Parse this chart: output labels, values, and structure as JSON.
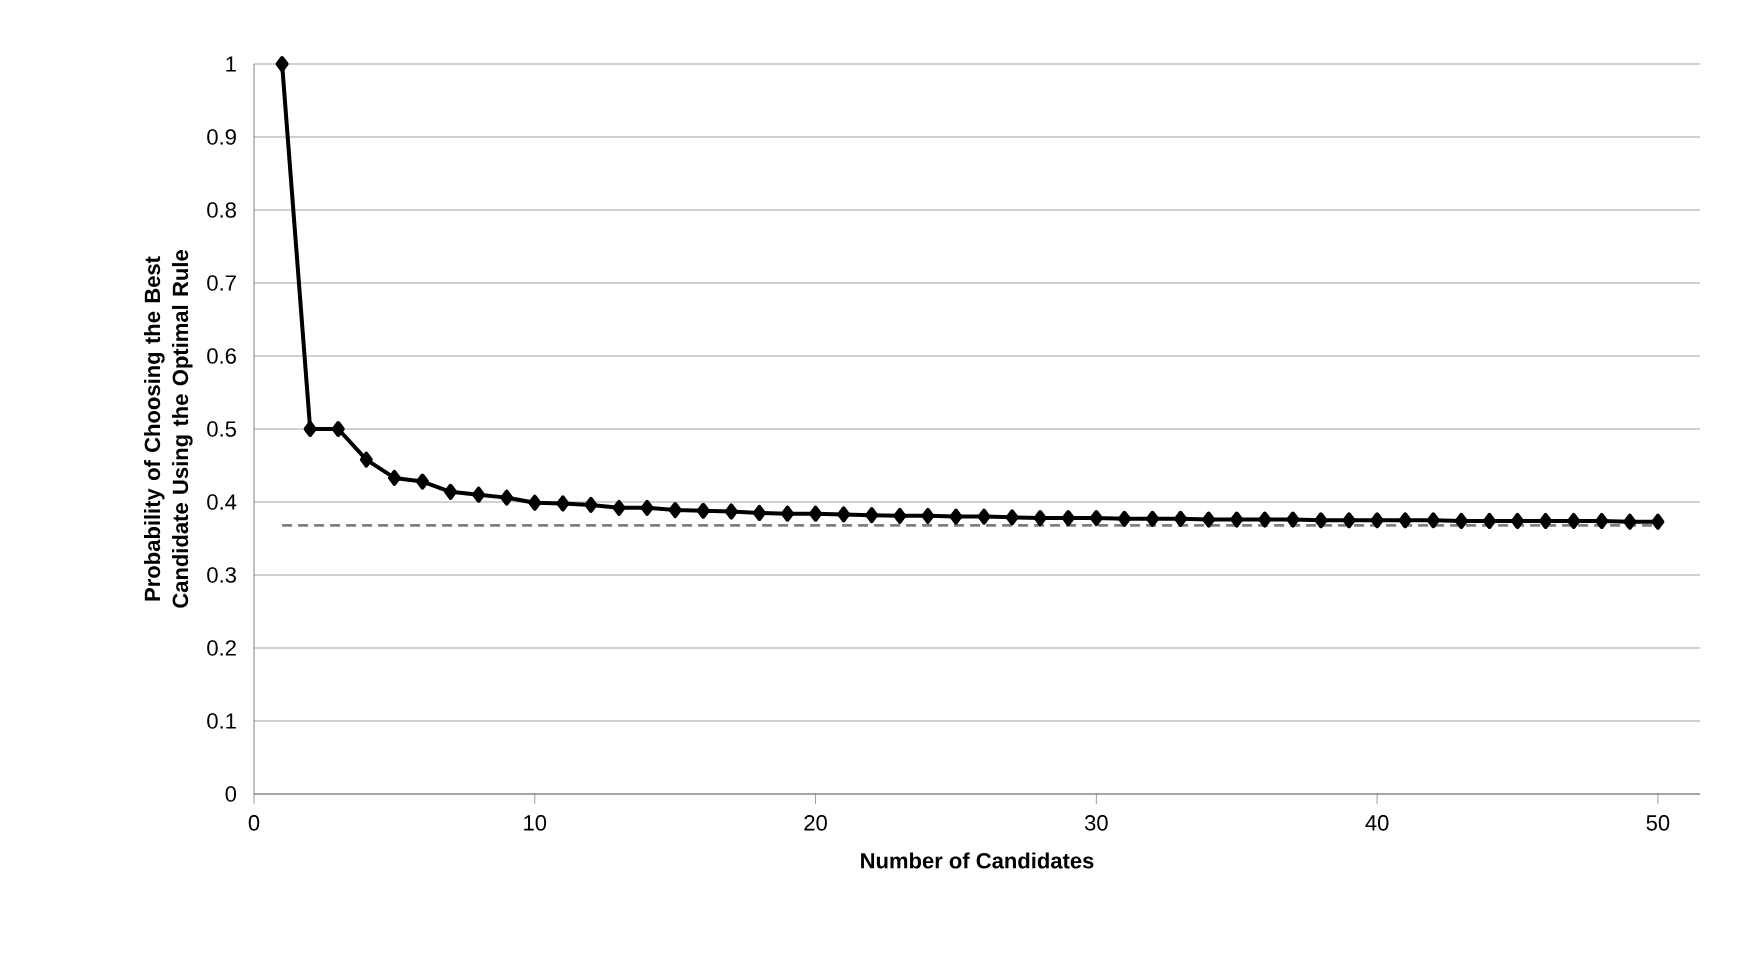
{
  "chart_data": {
    "type": "line",
    "xlabel": "Number of Candidates",
    "ylabel": "Probability of Choosing the Best Candidate Using the Optimal Rule",
    "x": [
      1,
      2,
      3,
      4,
      5,
      6,
      7,
      8,
      9,
      10,
      11,
      12,
      13,
      14,
      15,
      16,
      17,
      18,
      19,
      20,
      21,
      22,
      23,
      24,
      25,
      26,
      27,
      28,
      29,
      30,
      31,
      32,
      33,
      34,
      35,
      36,
      37,
      38,
      39,
      40,
      41,
      42,
      43,
      44,
      45,
      46,
      47,
      48,
      49,
      50
    ],
    "series": [
      {
        "color": "#000000",
        "values": [
          1,
          0.5,
          0.5,
          0.458,
          0.433,
          0.428,
          0.414,
          0.41,
          0.406,
          0.399,
          0.398,
          0.396,
          0.392,
          0.392,
          0.389,
          0.388,
          0.387,
          0.385,
          0.384,
          0.384,
          0.383,
          0.382,
          0.381,
          0.381,
          0.38,
          0.38,
          0.379,
          0.378,
          0.378,
          0.378,
          0.377,
          0.377,
          0.377,
          0.376,
          0.376,
          0.376,
          0.376,
          0.375,
          0.375,
          0.375,
          0.375,
          0.375,
          0.374,
          0.374,
          0.374,
          0.374,
          0.374,
          0.374,
          0.373,
          0.373
        ]
      }
    ],
    "xlim": [
      0,
      51.5
    ],
    "xticks": [
      0,
      10,
      20,
      30,
      40,
      50
    ],
    "ylim": [
      0,
      1
    ],
    "yticks": [
      0,
      0.1,
      0.2,
      0.3,
      0.4,
      0.5,
      0.6,
      0.7,
      0.8,
      0.9,
      1
    ],
    "grid": "y",
    "marker": "diamond",
    "line_style": "solid",
    "ref_lines": [
      {
        "axis": "y",
        "value": 0.368,
        "color": "#808080",
        "line_style": "dashed"
      }
    ]
  }
}
